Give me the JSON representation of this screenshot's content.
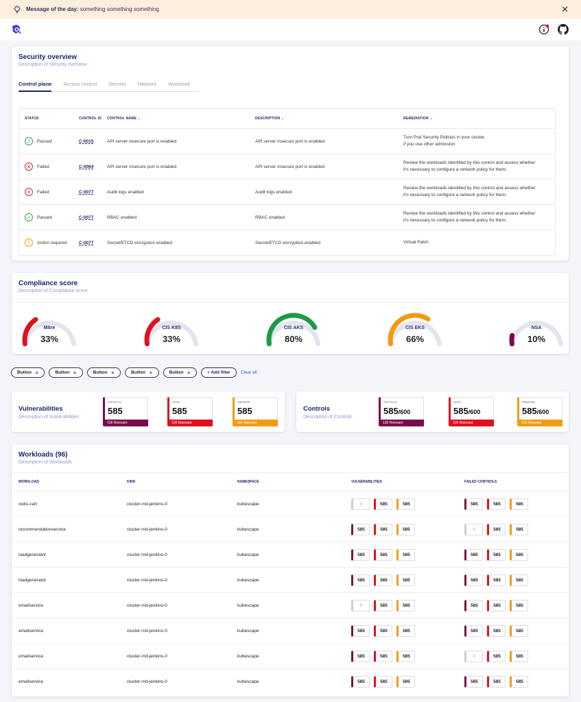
{
  "motd": {
    "title": "Message of the day:",
    "text": " something something something"
  },
  "colors": {
    "critical": "#7a0a4a",
    "high": "#e0101d",
    "medium": "#f39a12",
    "zero": "#cccccc",
    "brand": "#1d2466"
  },
  "security": {
    "title": "Security overview",
    "desc": "Description of Security overview",
    "tabs": [
      "Control plane",
      "Access control",
      "Secrets",
      "Network",
      "Workload"
    ],
    "headers": {
      "status": "STATUS",
      "id": "CONTROL ID",
      "name": "CONTROL NAME",
      "desc": "DESCRIPTION",
      "rem": "REMEDIATION"
    },
    "rows": [
      {
        "status": "Passed",
        "kind": "pass",
        "id": "C-0015",
        "name": "API server insecure port is enabled",
        "desc": "API server insecure port is enabled",
        "rem1": "Turn Pod Security Policies in your cluster,",
        "rem2": "if you use other admission"
      },
      {
        "status": "Failed",
        "kind": "fail",
        "id": "C-0064",
        "name": "API server insecure port is enabled",
        "desc": "API server insecure port is enabled",
        "rem1": "Review the workloads identified by this control and assess whether",
        "rem2": "it's necessary to configure a network policy for them."
      },
      {
        "status": "Failed",
        "kind": "fail",
        "id": "C-0077",
        "name": "Audit logs enabled",
        "desc": "Audit logs enabled",
        "rem1": "Review the workloads identified by this control and assess whether",
        "rem2": "it's necessary to configure a network policy for them."
      },
      {
        "status": "Passed",
        "kind": "pass",
        "id": "C-0077",
        "name": "RBAC enabled",
        "desc": "RBAC enabled",
        "rem1": "Review the workloads identified by this control and assess whether",
        "rem2": "it's necessary to configure a network policy for them."
      },
      {
        "status": "Action required",
        "kind": "warn",
        "id": "C-0077",
        "name": "Secret/ETCD encryption enabled",
        "desc": "Secret/ETCD encryption enabled",
        "rem1": "Virtual Patch",
        "rem2": ""
      }
    ]
  },
  "compliance": {
    "title": "Compliance score",
    "desc": "Description of Compliance score",
    "gauges": [
      {
        "name": "Mitre",
        "value": "33%",
        "pct": 0.33,
        "color": "#e0101d"
      },
      {
        "name": "CIS K8S",
        "value": "33%",
        "pct": 0.33,
        "color": "#e0101d"
      },
      {
        "name": "CIS AKS",
        "value": "80%",
        "pct": 0.8,
        "color": "#1e9a46"
      },
      {
        "name": "CIS EKS",
        "value": "66%",
        "pct": 0.66,
        "color": "#f39a12"
      },
      {
        "name": "NSA",
        "value": "10%",
        "pct": 0.1,
        "color": "#7a0a4a"
      }
    ]
  },
  "filters": {
    "chips": [
      "Button",
      "Button",
      "Button",
      "Button",
      "Button"
    ],
    "add": "+ Add filter",
    "clear": "Clear all"
  },
  "vulns": {
    "title": "Vulnerabilities",
    "desc": "Description of Vulnerabilities",
    "boxes": [
      {
        "label": "CRITICAL",
        "num": "585",
        "rel": "136 Relevant"
      },
      {
        "label": "HIGH",
        "num": "585",
        "rel": "136 Relevant"
      },
      {
        "label": "MEDIUM",
        "num": "585",
        "rel": "136 Relevant"
      }
    ]
  },
  "controls": {
    "title": "Controls",
    "desc": "Description of Controls",
    "boxes": [
      {
        "label": "CRITICAL",
        "num": "585",
        "den": "/600",
        "rel": "136 Relevant"
      },
      {
        "label": "HIGH",
        "num": "585",
        "den": "/600",
        "rel": "136 Relevant"
      },
      {
        "label": "MEDIUM",
        "num": "585",
        "den": "/600",
        "rel": "136 Relevant"
      }
    ]
  },
  "workloads": {
    "title": "Workloads (96)",
    "desc": "Description of Workloads",
    "headers": {
      "w": "WORKLOAD",
      "k": "KIND",
      "n": "NAMESPACE",
      "v": "VULNERABILITIES",
      "f": "FAILED CONTROLS"
    },
    "rows": [
      {
        "w": "redis-cart",
        "k": "cluster-rnd-jenkins-0",
        "n": "kubescape",
        "v": [
          "0",
          "585",
          "585"
        ],
        "f": [
          "585",
          "585",
          "585"
        ]
      },
      {
        "w": "recommendationservice",
        "k": "cluster-rnd-jenkins-0",
        "n": "kubescape",
        "v": [
          "585",
          "585",
          "585"
        ],
        "f": [
          "0",
          "585",
          "585"
        ]
      },
      {
        "w": "loadgenerator",
        "k": "cluster-rnd-jenkins-0",
        "n": "kubescape",
        "v": [
          "585",
          "585",
          "585"
        ],
        "f": [
          "585",
          "585",
          "585"
        ]
      },
      {
        "w": "loadgenerator",
        "k": "cluster-rnd-jenkins-0",
        "n": "kubescape",
        "v": [
          "585",
          "585",
          "585"
        ],
        "f": [
          "585",
          "585",
          "585"
        ]
      },
      {
        "w": "emailservice",
        "k": "cluster-rnd-jenkins-0",
        "n": "kubescape",
        "v": [
          "0",
          "585",
          "585"
        ],
        "f": [
          "585",
          "585",
          "585"
        ]
      },
      {
        "w": "emailservice",
        "k": "cluster-rnd-jenkins-0",
        "n": "kubescape",
        "v": [
          "585",
          "585",
          "585"
        ],
        "f": [
          "585",
          "585",
          "585"
        ]
      },
      {
        "w": "emailservice",
        "k": "cluster-rnd-jenkins-0",
        "n": "kubescape",
        "v": [
          "585",
          "585",
          "585"
        ],
        "f": [
          "0",
          "585",
          "585"
        ]
      },
      {
        "w": "emailservice",
        "k": "cluster-rnd-jenkins-0",
        "n": "kubescape",
        "v": [
          "585",
          "585",
          "585"
        ],
        "f": [
          "585",
          "585",
          "585"
        ]
      }
    ]
  }
}
